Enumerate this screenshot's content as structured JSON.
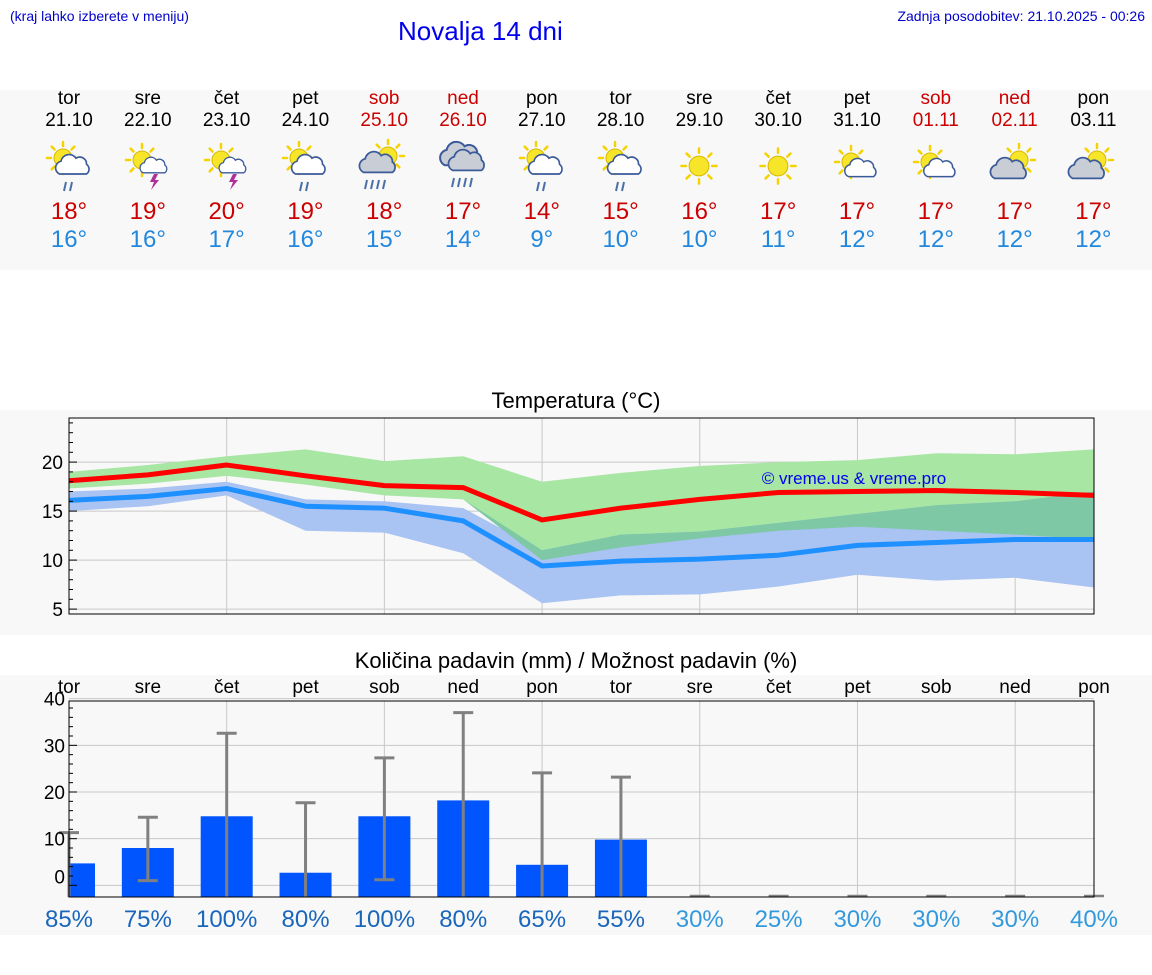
{
  "header": {
    "menu_hint": "(kraj lahko izberete v meniju)",
    "title": "Novalja 14 dni",
    "updated": "Zadnja posodobitev: 21.10.2025 - 00:26"
  },
  "colors": {
    "max_line": "#ff0000",
    "min_line": "#1e90ff",
    "max_band": "#a8e6a3",
    "min_band": "#a9c3f2",
    "overlap_band": "#7ec8a5",
    "precip_bar": "#0055ff",
    "error_bar": "#808080",
    "weekend": "#cc0000",
    "prob_high": "#1a66bb",
    "prob_low": "#3399dd"
  },
  "days": [
    {
      "name": "tor",
      "date": "21.10",
      "weekend": false,
      "icon": "sun-cloud-rain-icon",
      "tmax": "18°",
      "tmin": "16°"
    },
    {
      "name": "sre",
      "date": "22.10",
      "weekend": false,
      "icon": "sun-thunder-icon",
      "tmax": "19°",
      "tmin": "16°"
    },
    {
      "name": "čet",
      "date": "23.10",
      "weekend": false,
      "icon": "sun-thunder-icon",
      "tmax": "20°",
      "tmin": "17°"
    },
    {
      "name": "pet",
      "date": "24.10",
      "weekend": false,
      "icon": "sun-cloud-rain-icon",
      "tmax": "19°",
      "tmin": "16°"
    },
    {
      "name": "sob",
      "date": "25.10",
      "weekend": true,
      "icon": "sun-cloud-heavy-rain-icon",
      "tmax": "18°",
      "tmin": "15°"
    },
    {
      "name": "ned",
      "date": "26.10",
      "weekend": true,
      "icon": "cloud-heavy-rain-icon",
      "tmax": "17°",
      "tmin": "14°"
    },
    {
      "name": "pon",
      "date": "27.10",
      "weekend": false,
      "icon": "sun-cloud-rain-icon",
      "tmax": "14°",
      "tmin": "9°"
    },
    {
      "name": "tor",
      "date": "28.10",
      "weekend": false,
      "icon": "sun-cloud-rain-icon",
      "tmax": "15°",
      "tmin": "10°"
    },
    {
      "name": "sre",
      "date": "29.10",
      "weekend": false,
      "icon": "sun-icon",
      "tmax": "16°",
      "tmin": "10°"
    },
    {
      "name": "čet",
      "date": "30.10",
      "weekend": false,
      "icon": "sun-icon",
      "tmax": "17°",
      "tmin": "11°"
    },
    {
      "name": "pet",
      "date": "31.10",
      "weekend": false,
      "icon": "sun-small-cloud-icon",
      "tmax": "17°",
      "tmin": "12°"
    },
    {
      "name": "sob",
      "date": "01.11",
      "weekend": true,
      "icon": "sun-small-cloud-icon",
      "tmax": "17°",
      "tmin": "12°"
    },
    {
      "name": "ned",
      "date": "02.11",
      "weekend": true,
      "icon": "sun-cloud-icon",
      "tmax": "17°",
      "tmin": "12°"
    },
    {
      "name": "pon",
      "date": "03.11",
      "weekend": false,
      "icon": "sun-cloud-icon",
      "tmax": "17°",
      "tmin": "12°"
    }
  ],
  "chart_data": [
    {
      "type": "line",
      "title": "Temperatura (°C)",
      "watermark": "© vreme.us & vreme.pro",
      "ylim": [
        4.5,
        24.5
      ],
      "yticks": [
        5,
        10,
        15,
        20
      ],
      "grid": true,
      "x": [
        0,
        1,
        2,
        3,
        4,
        5,
        6,
        7,
        8,
        9,
        10,
        11,
        12,
        13
      ],
      "series": [
        {
          "key": "max",
          "values": [
            18.1,
            18.7,
            19.7,
            18.6,
            17.6,
            17.4,
            14.1,
            15.3,
            16.2,
            16.9,
            17.0,
            17.1,
            16.9,
            16.6
          ],
          "band_low": [
            17.3,
            17.8,
            18.6,
            17.7,
            16.6,
            16.2,
            10.0,
            11.3,
            12.2,
            13.0,
            13.4,
            13.0,
            12.6,
            12.1
          ],
          "band_high": [
            19.0,
            19.7,
            20.6,
            21.3,
            20.1,
            20.6,
            18.0,
            18.9,
            19.6,
            20.0,
            20.2,
            20.9,
            20.8,
            21.3
          ]
        },
        {
          "key": "min",
          "values": [
            16.1,
            16.5,
            17.3,
            15.5,
            15.3,
            14.0,
            9.4,
            9.9,
            10.1,
            10.5,
            11.5,
            11.8,
            12.1,
            12.1
          ],
          "band_low": [
            15.0,
            15.5,
            16.6,
            13.0,
            12.8,
            10.7,
            5.6,
            6.4,
            6.5,
            7.3,
            8.5,
            7.9,
            8.2,
            7.2
          ],
          "band_high": [
            17.0,
            17.3,
            18.0,
            16.2,
            16.0,
            15.3,
            11.0,
            12.6,
            12.9,
            13.8,
            14.7,
            15.6,
            16.0,
            17.0
          ]
        }
      ]
    },
    {
      "type": "bar",
      "title": "Količina padavin (mm) / Možnost padavin (%)",
      "ylim": [
        -2.5,
        39.5
      ],
      "yticks": [
        0,
        10,
        20,
        30,
        40
      ],
      "grid": true,
      "categories": [
        "tor",
        "sre",
        "čet",
        "pet",
        "sob",
        "ned",
        "pon",
        "tor",
        "sre",
        "čet",
        "pet",
        "sob",
        "ned",
        "pon"
      ],
      "values": [
        4.7,
        8.0,
        14.8,
        2.7,
        14.8,
        18.2,
        4.4,
        9.8,
        0,
        0,
        0,
        0,
        0,
        0
      ],
      "error_low": [
        0,
        1.0,
        0,
        0,
        1.2,
        0,
        0,
        0,
        0,
        0,
        0,
        0,
        0,
        0
      ],
      "error_high": [
        11.3,
        14.6,
        32.6,
        17.7,
        27.3,
        37.0,
        24.1,
        23.2,
        0,
        0,
        0,
        0,
        0,
        0
      ],
      "probability": [
        "85%",
        "75%",
        "100%",
        "80%",
        "100%",
        "80%",
        "65%",
        "55%",
        "30%",
        "25%",
        "30%",
        "30%",
        "30%",
        "40%"
      ]
    }
  ]
}
